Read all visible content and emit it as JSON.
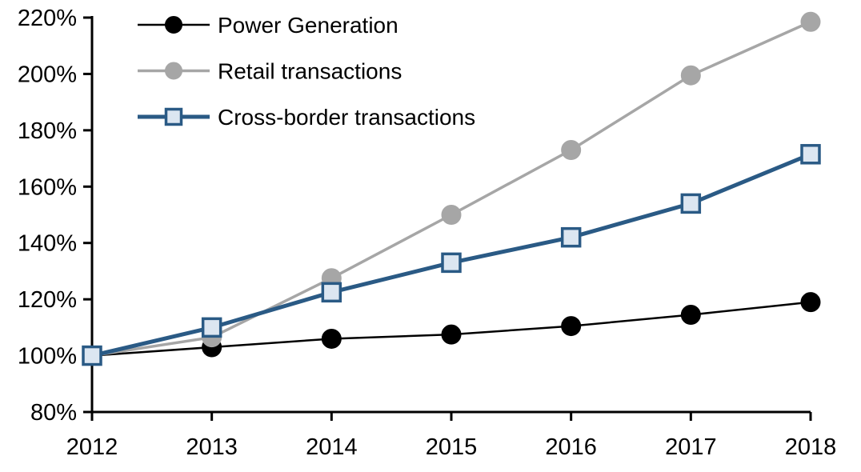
{
  "chart_data": {
    "type": "line",
    "title": "",
    "xlabel": "",
    "ylabel": "",
    "x_labels": [
      "2012",
      "2013",
      "2014",
      "2015",
      "2016",
      "2017",
      "2018"
    ],
    "ylim": [
      80,
      220
    ],
    "ytick_step": 20,
    "ytick_suffix": "%",
    "grid": false,
    "legend_position": "top-left",
    "axis_color": "#000000",
    "background_color": "#ffffff",
    "series": [
      {
        "name": "Power Generation",
        "values": [
          100,
          103,
          106,
          107.5,
          110.5,
          114.5,
          119
        ],
        "line_color": "#000000",
        "line_width": 2.5,
        "marker": "circle",
        "marker_fill": "#000000",
        "marker_stroke": "#000000"
      },
      {
        "name": "Retail transactions",
        "values": [
          100,
          106.5,
          127.5,
          150,
          173,
          199.5,
          218.5
        ],
        "line_color": "#A6A6A6",
        "line_width": 3.5,
        "marker": "circle",
        "marker_fill": "#A6A6A6",
        "marker_stroke": "#A6A6A6"
      },
      {
        "name": "Cross-border transactions",
        "values": [
          100,
          110,
          122.5,
          133,
          142,
          154,
          171.5
        ],
        "line_color": "#2A5A85",
        "line_width": 5,
        "marker": "square",
        "marker_fill": "#DCE6F1",
        "marker_stroke": "#2A5A85"
      }
    ]
  }
}
